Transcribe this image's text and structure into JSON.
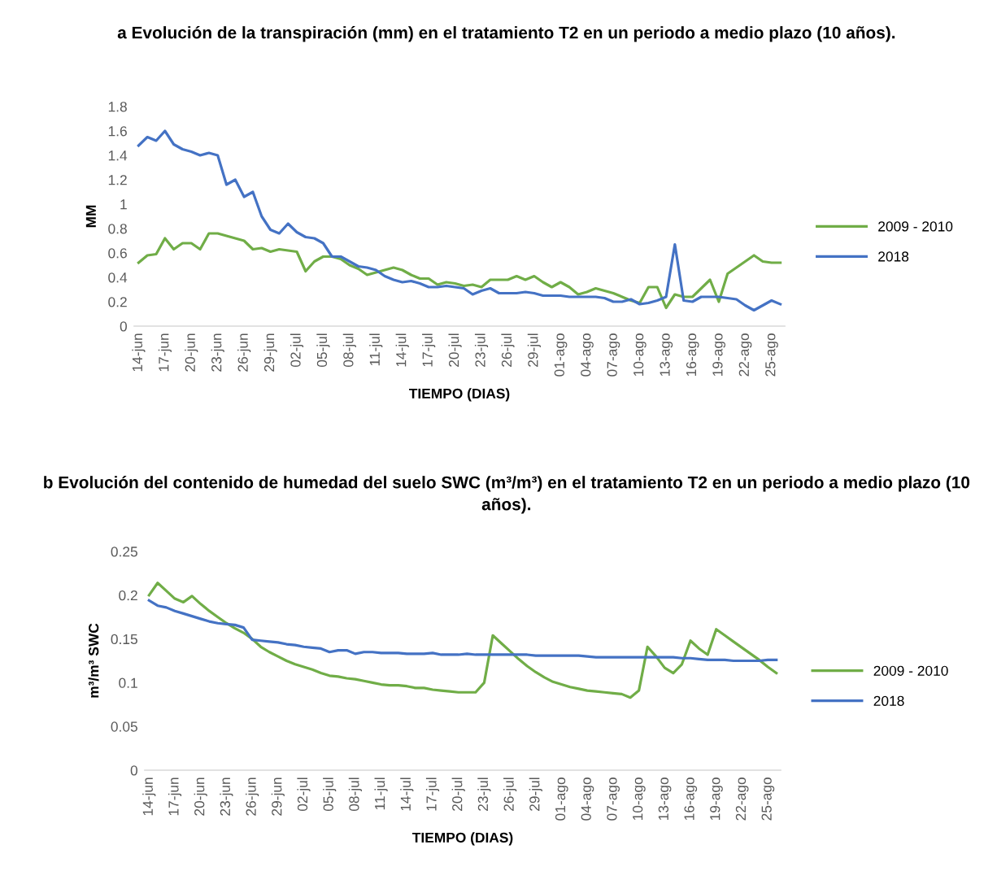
{
  "chart_data": [
    {
      "type": "line",
      "title": "a Evolución de la transpiración (mm) en el tratamiento T2 en un periodo a medio plazo (10 años).",
      "xlabel": "TIEMPO (DIAS)",
      "ylabel": "MM",
      "categories": [
        "14-jun",
        null,
        null,
        "17-jun",
        null,
        null,
        "20-jun",
        null,
        null,
        "23-jun",
        null,
        null,
        "26-jun",
        null,
        null,
        "29-jun",
        null,
        null,
        "02-jul",
        null,
        null,
        "05-jul",
        null,
        null,
        "08-jul",
        null,
        null,
        "11-jul",
        null,
        null,
        "14-jul",
        null,
        null,
        "17-jul",
        null,
        null,
        "20-jul",
        null,
        null,
        "23-jul",
        null,
        null,
        "26-jul",
        null,
        null,
        "29-jul",
        null,
        null,
        "01-ago",
        null,
        null,
        "04-ago",
        null,
        null,
        "07-ago",
        null,
        null,
        "10-ago",
        null,
        null,
        "13-ago",
        null,
        null,
        "16-ago",
        null,
        null,
        "19-ago",
        null,
        null,
        "22-ago",
        null,
        null,
        "25-ago",
        null
      ],
      "series": [
        {
          "name": "2009 - 2010",
          "color": "#70ad47",
          "values": [
            0.52,
            0.58,
            0.59,
            0.72,
            0.63,
            0.68,
            0.68,
            0.63,
            0.76,
            0.76,
            0.74,
            0.72,
            0.7,
            0.63,
            0.64,
            0.61,
            0.63,
            0.62,
            0.61,
            0.45,
            0.53,
            0.57,
            0.57,
            0.55,
            0.5,
            0.47,
            0.42,
            0.44,
            0.46,
            0.48,
            0.46,
            0.42,
            0.39,
            0.39,
            0.34,
            0.36,
            0.35,
            0.33,
            0.34,
            0.32,
            0.38,
            0.38,
            0.38,
            0.41,
            0.38,
            0.41,
            0.36,
            0.32,
            0.36,
            0.32,
            0.26,
            0.28,
            0.31,
            0.29,
            0.27,
            0.24,
            0.21,
            0.19,
            0.32,
            0.32,
            0.15,
            0.26,
            0.24,
            0.24,
            0.31,
            0.38,
            0.2,
            0.43,
            0.48,
            0.53,
            0.58,
            0.53,
            0.52,
            0.52
          ]
        },
        {
          "name": "2018",
          "color": "#4472c4",
          "values": [
            1.48,
            1.55,
            1.52,
            1.6,
            1.49,
            1.45,
            1.43,
            1.4,
            1.42,
            1.4,
            1.16,
            1.2,
            1.06,
            1.1,
            0.9,
            0.79,
            0.76,
            0.84,
            0.77,
            0.73,
            0.72,
            0.68,
            0.57,
            0.57,
            0.53,
            0.49,
            0.48,
            0.46,
            0.41,
            0.38,
            0.36,
            0.37,
            0.35,
            0.32,
            0.32,
            0.33,
            0.32,
            0.31,
            0.26,
            0.29,
            0.31,
            0.27,
            0.27,
            0.27,
            0.28,
            0.27,
            0.25,
            0.25,
            0.25,
            0.24,
            0.24,
            0.24,
            0.24,
            0.23,
            0.2,
            0.2,
            0.22,
            0.18,
            0.19,
            0.21,
            0.24,
            0.67,
            0.21,
            0.2,
            0.24,
            0.24,
            0.24,
            0.23,
            0.22,
            0.17,
            0.13,
            0.17,
            0.21,
            0.18
          ]
        }
      ],
      "ylim": [
        0,
        1.8
      ],
      "yticks": [
        0,
        0.2,
        0.4,
        0.6,
        0.8,
        1,
        1.2,
        1.4,
        1.6,
        1.8
      ],
      "legend": "right",
      "grid": false
    },
    {
      "type": "line",
      "title": "b Evolución del contenido de humedad del suelo SWC (m³/m³) en el tratamiento T2 en un periodo a medio plazo (10 años).",
      "xlabel": "TIEMPO (DIAS)",
      "ylabel": "m³/m³ SWC",
      "categories": [
        "14-jun",
        null,
        null,
        "17-jun",
        null,
        null,
        "20-jun",
        null,
        null,
        "23-jun",
        null,
        null,
        "26-jun",
        null,
        null,
        "29-jun",
        null,
        null,
        "02-jul",
        null,
        null,
        "05-jul",
        null,
        null,
        "08-jul",
        null,
        null,
        "11-jul",
        null,
        null,
        "14-jul",
        null,
        null,
        "17-jul",
        null,
        null,
        "20-jul",
        null,
        null,
        "23-jul",
        null,
        null,
        "26-jul",
        null,
        null,
        "29-jul",
        null,
        null,
        "01-ago",
        null,
        null,
        "04-ago",
        null,
        null,
        "07-ago",
        null,
        null,
        "10-ago",
        null,
        null,
        "13-ago",
        null,
        null,
        "16-ago",
        null,
        null,
        "19-ago",
        null,
        null,
        "22-ago",
        null,
        null,
        "25-ago",
        null
      ],
      "series": [
        {
          "name": "2009 - 2010",
          "color": "#70ad47",
          "values": [
            0.2,
            0.214,
            0.205,
            0.196,
            0.192,
            0.199,
            0.19,
            0.182,
            0.175,
            0.168,
            0.162,
            0.157,
            0.15,
            0.141,
            0.135,
            0.13,
            0.125,
            0.121,
            0.118,
            0.115,
            0.111,
            0.108,
            0.107,
            0.105,
            0.104,
            0.102,
            0.1,
            0.098,
            0.097,
            0.097,
            0.096,
            0.094,
            0.094,
            0.092,
            0.091,
            0.09,
            0.089,
            0.089,
            0.089,
            0.1,
            0.154,
            0.145,
            0.136,
            0.127,
            0.119,
            0.112,
            0.106,
            0.101,
            0.098,
            0.095,
            0.093,
            0.091,
            0.09,
            0.089,
            0.088,
            0.087,
            0.083,
            0.091,
            0.141,
            0.13,
            0.117,
            0.111,
            0.121,
            0.148,
            0.139,
            0.132,
            0.161,
            0.154,
            0.147,
            0.14,
            0.133,
            0.126,
            0.118,
            0.111
          ]
        },
        {
          "name": "2018",
          "color": "#4472c4",
          "values": [
            0.194,
            0.188,
            0.186,
            0.182,
            0.179,
            0.176,
            0.173,
            0.17,
            0.168,
            0.167,
            0.166,
            0.163,
            0.149,
            0.148,
            0.147,
            0.146,
            0.144,
            0.143,
            0.141,
            0.14,
            0.139,
            0.135,
            0.137,
            0.137,
            0.133,
            0.135,
            0.135,
            0.134,
            0.134,
            0.134,
            0.133,
            0.133,
            0.133,
            0.134,
            0.132,
            0.132,
            0.132,
            0.133,
            0.132,
            0.132,
            0.132,
            0.132,
            0.132,
            0.132,
            0.132,
            0.131,
            0.131,
            0.131,
            0.131,
            0.131,
            0.131,
            0.13,
            0.129,
            0.129,
            0.129,
            0.129,
            0.129,
            0.129,
            0.129,
            0.129,
            0.129,
            0.129,
            0.128,
            0.128,
            0.127,
            0.126,
            0.126,
            0.126,
            0.125,
            0.125,
            0.125,
            0.125,
            0.126,
            0.126
          ]
        }
      ],
      "ylim": [
        0,
        0.25
      ],
      "yticks": [
        0,
        0.05,
        0.1,
        0.15,
        0.2,
        0.25
      ],
      "legend": "right",
      "grid": false
    }
  ]
}
